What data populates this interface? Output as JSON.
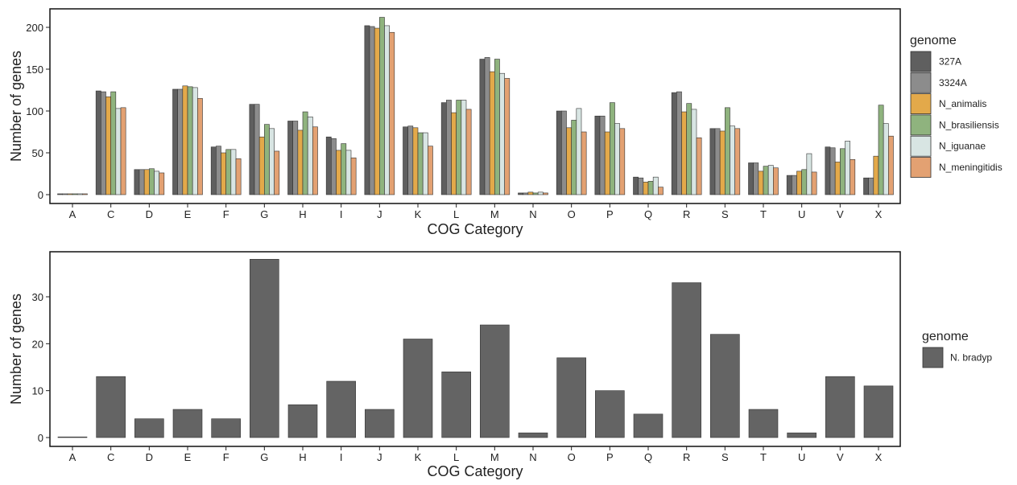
{
  "chart_data": [
    {
      "type": "bar",
      "xlabel": "COG Category",
      "ylabel": "Number of genes",
      "ylim": [
        0,
        220
      ],
      "yticks": [
        0,
        50,
        100,
        150,
        200
      ],
      "grid": false,
      "legend": {
        "title": "genome",
        "position": "right"
      },
      "categories": [
        "A",
        "C",
        "D",
        "E",
        "F",
        "G",
        "H",
        "I",
        "J",
        "K",
        "L",
        "M",
        "N",
        "O",
        "P",
        "Q",
        "R",
        "S",
        "T",
        "U",
        "V",
        "X"
      ],
      "series": [
        {
          "name": "327A",
          "color": "#5f5f5f",
          "values": [
            1,
            124,
            30,
            126,
            57,
            108,
            88,
            69,
            202,
            81,
            110,
            162,
            2,
            100,
            94,
            21,
            122,
            79,
            38,
            23,
            57,
            20
          ]
        },
        {
          "name": "3324A",
          "color": "#8c8c8c",
          "values": [
            1,
            123,
            30,
            126,
            58,
            108,
            88,
            67,
            201,
            82,
            113,
            164,
            2,
            100,
            94,
            20,
            123,
            79,
            38,
            23,
            56,
            20
          ]
        },
        {
          "name": "N_animalis",
          "color": "#e3a94a",
          "values": [
            1,
            117,
            30,
            130,
            50,
            69,
            77,
            53,
            199,
            80,
            98,
            147,
            3,
            80,
            75,
            15,
            99,
            76,
            28,
            28,
            39,
            46
          ]
        },
        {
          "name": "N_brasiliensis",
          "color": "#8fb37e",
          "values": [
            1,
            123,
            31,
            129,
            54,
            84,
            99,
            61,
            212,
            74,
            113,
            162,
            2,
            89,
            110,
            16,
            109,
            104,
            34,
            30,
            55,
            107
          ]
        },
        {
          "name": "N_iguanae",
          "color": "#d8e5e3",
          "values": [
            1,
            103,
            28,
            128,
            54,
            79,
            93,
            53,
            202,
            74,
            113,
            145,
            3,
            103,
            85,
            21,
            102,
            82,
            35,
            49,
            64,
            85
          ]
        },
        {
          "name": "N_meningitidis",
          "color": "#e3a172",
          "values": [
            1,
            104,
            26,
            115,
            43,
            52,
            81,
            44,
            194,
            58,
            102,
            139,
            2,
            75,
            79,
            9,
            68,
            79,
            32,
            27,
            42,
            70
          ]
        }
      ]
    },
    {
      "type": "bar",
      "xlabel": "COG Category",
      "ylabel": "Number of genes",
      "ylim": [
        0,
        39
      ],
      "yticks": [
        0,
        10,
        20,
        30
      ],
      "grid": false,
      "legend": {
        "title": "genome",
        "position": "right"
      },
      "categories": [
        "A",
        "C",
        "D",
        "E",
        "F",
        "G",
        "H",
        "I",
        "J",
        "K",
        "L",
        "M",
        "N",
        "O",
        "P",
        "Q",
        "R",
        "S",
        "T",
        "U",
        "V",
        "X"
      ],
      "series": [
        {
          "name": "N. bradyp",
          "color": "#646464",
          "values": [
            0,
            13,
            4,
            6,
            4,
            38,
            7,
            12,
            6,
            21,
            14,
            24,
            1,
            17,
            10,
            5,
            33,
            22,
            6,
            1,
            13,
            11
          ]
        }
      ]
    }
  ]
}
